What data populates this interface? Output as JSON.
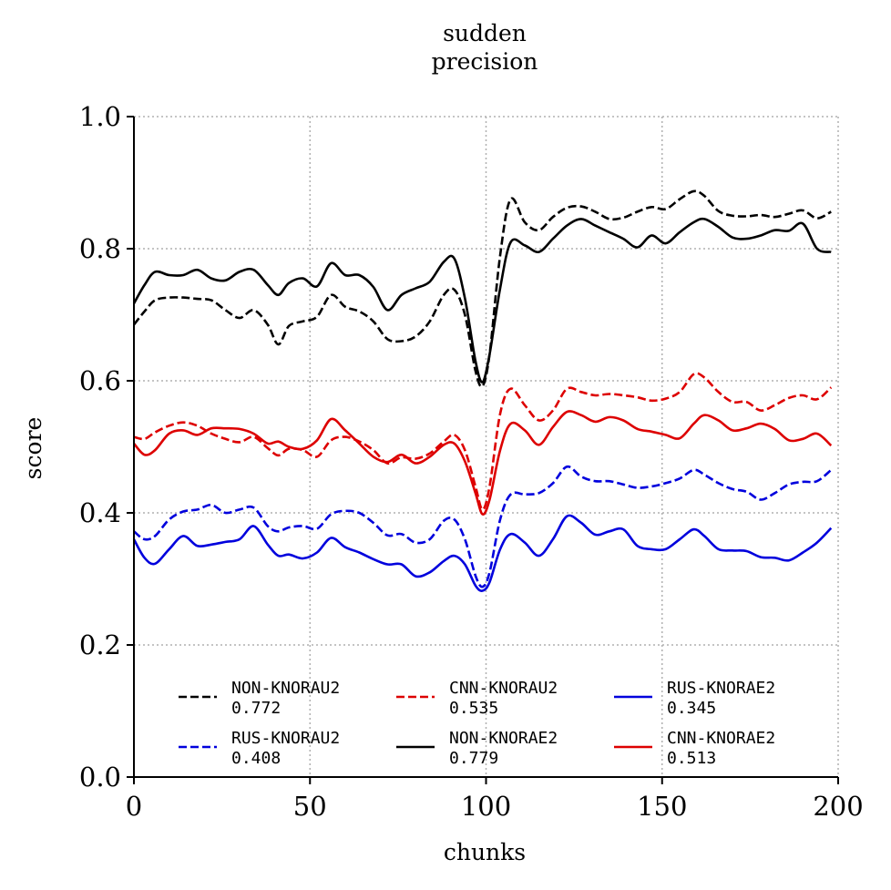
{
  "chart_data": {
    "type": "line",
    "title_line1": "sudden",
    "title_line2": "precision",
    "xlabel": "chunks",
    "ylabel": "score",
    "xlim": [
      0,
      200
    ],
    "ylim": [
      0,
      1.0
    ],
    "xticks": [
      "0",
      "50",
      "100",
      "150",
      "200"
    ],
    "yticks": [
      "0.0",
      "0.2",
      "0.4",
      "0.6",
      "0.8",
      "1.0"
    ],
    "grid": true,
    "grid_style": "dotted",
    "legend_placement": "lower-center",
    "series": [
      {
        "name": "NON-KNORAU2",
        "score": "0.772",
        "color": "#000000",
        "dash": "dashed",
        "x": [
          0,
          3,
          6,
          10,
          14,
          18,
          22,
          26,
          30,
          34,
          38,
          41,
          44,
          48,
          52,
          56,
          60,
          64,
          68,
          72,
          76,
          80,
          84,
          88,
          91,
          94,
          97,
          99,
          101,
          104,
          107,
          111,
          115,
          119,
          123,
          127,
          131,
          135,
          139,
          143,
          147,
          151,
          155,
          159,
          162,
          166,
          170,
          174,
          178,
          182,
          186,
          190,
          194,
          198
        ],
        "values": [
          0.685,
          0.705,
          0.722,
          0.726,
          0.726,
          0.724,
          0.722,
          0.707,
          0.695,
          0.707,
          0.685,
          0.655,
          0.683,
          0.69,
          0.697,
          0.73,
          0.712,
          0.705,
          0.69,
          0.663,
          0.66,
          0.667,
          0.69,
          0.73,
          0.738,
          0.7,
          0.615,
          0.592,
          0.64,
          0.79,
          0.875,
          0.84,
          0.828,
          0.848,
          0.862,
          0.864,
          0.856,
          0.845,
          0.847,
          0.856,
          0.863,
          0.86,
          0.875,
          0.887,
          0.88,
          0.857,
          0.85,
          0.849,
          0.851,
          0.848,
          0.853,
          0.858,
          0.846,
          0.856
        ]
      },
      {
        "name": "RUS-KNORAU2",
        "score": "0.408",
        "color": "#0000dd",
        "dash": "dashed",
        "x": [
          0,
          3,
          6,
          10,
          14,
          18,
          22,
          26,
          30,
          34,
          38,
          41,
          44,
          48,
          52,
          56,
          60,
          64,
          68,
          72,
          76,
          80,
          84,
          88,
          91,
          94,
          97,
          99,
          101,
          104,
          107,
          111,
          115,
          119,
          123,
          127,
          131,
          135,
          139,
          143,
          147,
          151,
          155,
          159,
          162,
          166,
          170,
          174,
          178,
          182,
          186,
          190,
          194,
          198
        ],
        "values": [
          0.372,
          0.36,
          0.365,
          0.39,
          0.402,
          0.405,
          0.412,
          0.4,
          0.405,
          0.408,
          0.38,
          0.372,
          0.378,
          0.38,
          0.376,
          0.398,
          0.403,
          0.4,
          0.385,
          0.366,
          0.368,
          0.355,
          0.36,
          0.388,
          0.39,
          0.36,
          0.305,
          0.288,
          0.31,
          0.39,
          0.428,
          0.428,
          0.43,
          0.445,
          0.47,
          0.455,
          0.448,
          0.448,
          0.443,
          0.438,
          0.44,
          0.445,
          0.452,
          0.465,
          0.458,
          0.445,
          0.436,
          0.432,
          0.42,
          0.43,
          0.443,
          0.447,
          0.448,
          0.465
        ]
      },
      {
        "name": "CNN-KNORAU2",
        "score": "0.535",
        "color": "#dd0000",
        "dash": "dashed",
        "x": [
          0,
          3,
          6,
          10,
          14,
          18,
          22,
          26,
          30,
          34,
          38,
          41,
          44,
          48,
          52,
          56,
          60,
          64,
          68,
          72,
          76,
          80,
          84,
          88,
          91,
          94,
          97,
          99,
          101,
          104,
          107,
          111,
          115,
          119,
          123,
          127,
          131,
          135,
          139,
          143,
          147,
          151,
          155,
          159,
          162,
          166,
          170,
          174,
          178,
          182,
          186,
          190,
          194,
          198
        ],
        "values": [
          0.515,
          0.512,
          0.522,
          0.532,
          0.537,
          0.532,
          0.52,
          0.512,
          0.507,
          0.515,
          0.498,
          0.487,
          0.497,
          0.495,
          0.485,
          0.51,
          0.515,
          0.508,
          0.495,
          0.475,
          0.484,
          0.482,
          0.49,
          0.508,
          0.518,
          0.495,
          0.44,
          0.405,
          0.44,
          0.55,
          0.588,
          0.563,
          0.54,
          0.555,
          0.588,
          0.583,
          0.578,
          0.58,
          0.578,
          0.575,
          0.57,
          0.573,
          0.583,
          0.61,
          0.605,
          0.583,
          0.568,
          0.568,
          0.555,
          0.563,
          0.574,
          0.578,
          0.572,
          0.59
        ]
      },
      {
        "name": "NON-KNORAE2",
        "score": "0.779",
        "color": "#000000",
        "dash": "solid",
        "x": [
          0,
          3,
          6,
          10,
          14,
          18,
          22,
          26,
          30,
          34,
          38,
          41,
          44,
          48,
          52,
          56,
          60,
          64,
          68,
          72,
          76,
          80,
          84,
          88,
          91,
          94,
          97,
          99,
          101,
          104,
          107,
          111,
          115,
          119,
          123,
          127,
          131,
          135,
          139,
          143,
          147,
          151,
          155,
          159,
          162,
          166,
          170,
          174,
          178,
          182,
          186,
          190,
          194,
          198
        ],
        "values": [
          0.717,
          0.745,
          0.765,
          0.76,
          0.76,
          0.768,
          0.755,
          0.752,
          0.765,
          0.768,
          0.745,
          0.73,
          0.748,
          0.755,
          0.743,
          0.778,
          0.76,
          0.76,
          0.742,
          0.707,
          0.73,
          0.74,
          0.75,
          0.78,
          0.785,
          0.725,
          0.63,
          0.598,
          0.64,
          0.74,
          0.81,
          0.805,
          0.795,
          0.815,
          0.835,
          0.845,
          0.835,
          0.825,
          0.815,
          0.802,
          0.82,
          0.808,
          0.825,
          0.84,
          0.845,
          0.833,
          0.817,
          0.815,
          0.82,
          0.828,
          0.827,
          0.838,
          0.8,
          0.795
        ]
      },
      {
        "name": "RUS-KNORAE2",
        "score": "0.345",
        "color": "#0000dd",
        "dash": "solid",
        "x": [
          0,
          3,
          6,
          10,
          14,
          18,
          22,
          26,
          30,
          34,
          38,
          41,
          44,
          48,
          52,
          56,
          60,
          64,
          68,
          72,
          76,
          80,
          84,
          88,
          91,
          94,
          97,
          99,
          101,
          104,
          107,
          111,
          115,
          119,
          123,
          127,
          131,
          135,
          139,
          143,
          147,
          151,
          155,
          159,
          162,
          166,
          170,
          174,
          178,
          182,
          186,
          190,
          194,
          198
        ],
        "values": [
          0.36,
          0.332,
          0.323,
          0.345,
          0.365,
          0.35,
          0.352,
          0.356,
          0.36,
          0.38,
          0.352,
          0.335,
          0.337,
          0.331,
          0.34,
          0.362,
          0.348,
          0.34,
          0.33,
          0.322,
          0.322,
          0.304,
          0.31,
          0.327,
          0.335,
          0.322,
          0.29,
          0.282,
          0.295,
          0.345,
          0.368,
          0.355,
          0.335,
          0.36,
          0.395,
          0.385,
          0.367,
          0.372,
          0.375,
          0.35,
          0.345,
          0.345,
          0.36,
          0.375,
          0.365,
          0.345,
          0.343,
          0.342,
          0.333,
          0.332,
          0.328,
          0.34,
          0.355,
          0.377
        ]
      },
      {
        "name": "CNN-KNORAE2",
        "score": "0.513",
        "color": "#dd0000",
        "dash": "solid",
        "x": [
          0,
          3,
          6,
          10,
          14,
          18,
          22,
          26,
          30,
          34,
          38,
          41,
          44,
          48,
          52,
          56,
          60,
          64,
          68,
          72,
          76,
          80,
          84,
          88,
          91,
          94,
          97,
          99,
          101,
          104,
          107,
          111,
          115,
          119,
          123,
          127,
          131,
          135,
          139,
          143,
          147,
          151,
          155,
          159,
          162,
          166,
          170,
          174,
          178,
          182,
          186,
          190,
          194,
          198
        ],
        "values": [
          0.505,
          0.488,
          0.495,
          0.52,
          0.525,
          0.518,
          0.528,
          0.528,
          0.527,
          0.52,
          0.505,
          0.508,
          0.5,
          0.497,
          0.51,
          0.542,
          0.525,
          0.505,
          0.485,
          0.477,
          0.488,
          0.475,
          0.485,
          0.503,
          0.505,
          0.478,
          0.43,
          0.398,
          0.42,
          0.495,
          0.535,
          0.525,
          0.503,
          0.53,
          0.553,
          0.548,
          0.538,
          0.545,
          0.54,
          0.527,
          0.523,
          0.518,
          0.513,
          0.535,
          0.548,
          0.54,
          0.525,
          0.528,
          0.535,
          0.527,
          0.51,
          0.512,
          0.52,
          0.502
        ]
      }
    ]
  }
}
